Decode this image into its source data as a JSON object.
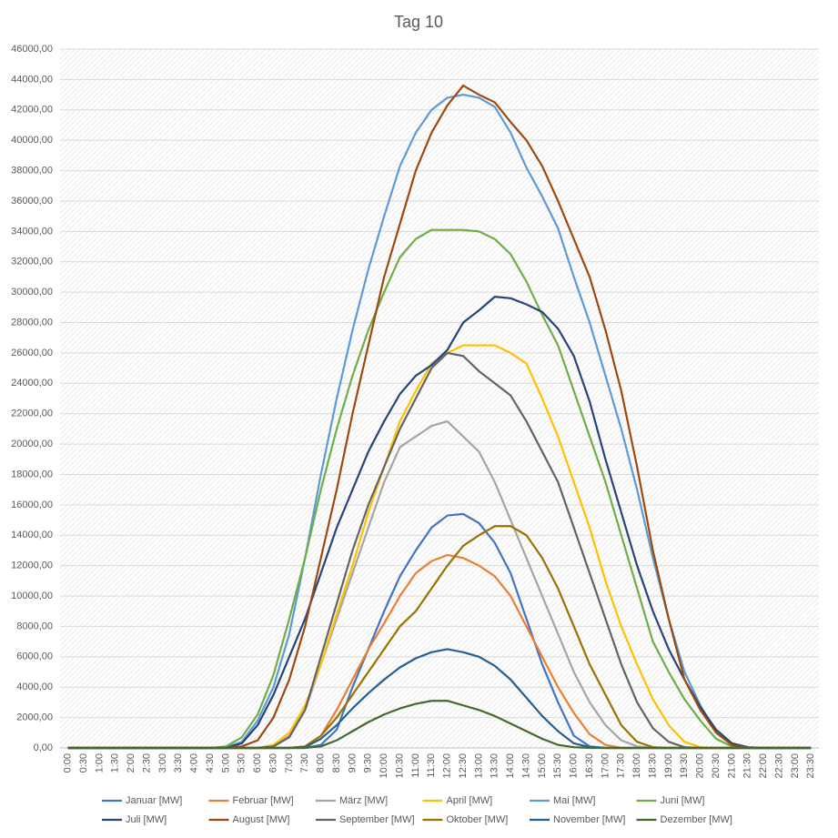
{
  "chart_data": {
    "type": "line",
    "title": "Tag 10",
    "categories": [
      "0:00",
      "0:30",
      "1:00",
      "1:30",
      "2:00",
      "2:30",
      "3:00",
      "3:30",
      "4:00",
      "4:30",
      "5:00",
      "5:30",
      "6:00",
      "6:30",
      "7:00",
      "7:30",
      "8:00",
      "8:30",
      "9:00",
      "9:30",
      "10:00",
      "10:30",
      "11:00",
      "11:30",
      "12:00",
      "12:30",
      "13:00",
      "13:30",
      "14:00",
      "14:30",
      "15:00",
      "15:30",
      "16:00",
      "16:30",
      "17:00",
      "17:30",
      "18:00",
      "18:30",
      "19:00",
      "19:30",
      "20:00",
      "20:30",
      "21:00",
      "21:30",
      "22:00",
      "22:30",
      "23:00",
      "23:30"
    ],
    "ylim": [
      0,
      46000
    ],
    "yticks": [
      {
        "value": 0,
        "label": "0,00"
      },
      {
        "value": 2000,
        "label": "2000,00"
      },
      {
        "value": 4000,
        "label": "4000,00"
      },
      {
        "value": 6000,
        "label": "6000,00"
      },
      {
        "value": 8000,
        "label": "8000,00"
      },
      {
        "value": 10000,
        "label": "10000,00"
      },
      {
        "value": 12000,
        "label": "12000,00"
      },
      {
        "value": 14000,
        "label": "14000,00"
      },
      {
        "value": 16000,
        "label": "16000,00"
      },
      {
        "value": 18000,
        "label": "18000,00"
      },
      {
        "value": 20000,
        "label": "20000,00"
      },
      {
        "value": 22000,
        "label": "22000,00"
      },
      {
        "value": 24000,
        "label": "24000,00"
      },
      {
        "value": 26000,
        "label": "26000,00"
      },
      {
        "value": 28000,
        "label": "28000,00"
      },
      {
        "value": 30000,
        "label": "30000,00"
      },
      {
        "value": 32000,
        "label": "32000,00"
      },
      {
        "value": 34000,
        "label": "34000,00"
      },
      {
        "value": 36000,
        "label": "36000,00"
      },
      {
        "value": 38000,
        "label": "38000,00"
      },
      {
        "value": 40000,
        "label": "40000,00"
      },
      {
        "value": 42000,
        "label": "42000,00"
      },
      {
        "value": 44000,
        "label": "44000,00"
      },
      {
        "value": 46000,
        "label": "46000,00"
      }
    ],
    "grid": true,
    "legend": "bottom",
    "series": [
      {
        "name": "Januar [MW]",
        "color": "#4472c4",
        "values": [
          0,
          0,
          0,
          0,
          0,
          0,
          0,
          0,
          0,
          0,
          0,
          0,
          0,
          0,
          0,
          0,
          200,
          1200,
          4000,
          6500,
          9000,
          11300,
          13000,
          14500,
          15300,
          15400,
          14800,
          13500,
          11500,
          8500,
          5500,
          3000,
          800,
          100,
          0,
          0,
          0,
          0,
          0,
          0,
          0,
          0,
          0,
          0,
          0,
          0,
          0,
          0
        ]
      },
      {
        "name": "Februar [MW]",
        "color": "#ed7d31",
        "values": [
          0,
          0,
          0,
          0,
          0,
          0,
          0,
          0,
          0,
          0,
          0,
          0,
          0,
          0,
          0,
          100,
          800,
          2500,
          4500,
          6500,
          8200,
          10000,
          11500,
          12300,
          12700,
          12500,
          12000,
          11300,
          10000,
          8000,
          6000,
          4000,
          2300,
          900,
          200,
          0,
          0,
          0,
          0,
          0,
          0,
          0,
          0,
          0,
          0,
          0,
          0,
          0
        ]
      },
      {
        "name": "März [MW]",
        "color": "#a5a5a5",
        "values": [
          0,
          0,
          0,
          0,
          0,
          0,
          0,
          0,
          0,
          0,
          0,
          0,
          0,
          100,
          800,
          2500,
          5500,
          8500,
          11500,
          14500,
          17500,
          19800,
          20500,
          21200,
          21500,
          20500,
          19500,
          17500,
          15000,
          12500,
          10000,
          7500,
          5000,
          3000,
          1500,
          500,
          100,
          0,
          0,
          0,
          0,
          0,
          0,
          0,
          0,
          0,
          0,
          0
        ]
      },
      {
        "name": "April [MW]",
        "color": "#ffc000",
        "values": [
          0,
          0,
          0,
          0,
          0,
          0,
          0,
          0,
          0,
          0,
          0,
          0,
          0,
          200,
          1000,
          2800,
          5500,
          8800,
          12000,
          15500,
          18500,
          21500,
          23500,
          25300,
          26000,
          26500,
          26500,
          26500,
          26000,
          25300,
          23000,
          20500,
          17500,
          14500,
          11000,
          8000,
          5500,
          3200,
          1500,
          400,
          50,
          0,
          0,
          0,
          0,
          0,
          0,
          0
        ]
      },
      {
        "name": "Mai [MW]",
        "color": "#5b9bd5",
        "values": [
          0,
          0,
          0,
          0,
          0,
          0,
          0,
          0,
          0,
          0,
          50,
          400,
          1800,
          4000,
          7500,
          12500,
          18000,
          23000,
          27500,
          31500,
          35000,
          38300,
          40500,
          42000,
          42800,
          43000,
          42800,
          42200,
          40500,
          38200,
          36300,
          34200,
          31000,
          28000,
          24500,
          21000,
          17000,
          12500,
          8500,
          5000,
          2800,
          1000,
          200,
          0,
          0,
          0,
          0,
          0
        ]
      },
      {
        "name": "Juni [MW]",
        "color": "#70ad47",
        "values": [
          0,
          0,
          0,
          0,
          0,
          0,
          0,
          0,
          0,
          0,
          100,
          700,
          2200,
          4800,
          8500,
          12500,
          17000,
          21000,
          24500,
          27500,
          30000,
          32300,
          33500,
          34100,
          34100,
          34100,
          34000,
          33500,
          32500,
          30700,
          28500,
          26500,
          23500,
          20500,
          17500,
          14000,
          10500,
          7000,
          5000,
          3200,
          1800,
          600,
          100,
          0,
          0,
          0,
          0,
          0
        ]
      },
      {
        "name": "Juli [MW]",
        "color": "#264478",
        "values": [
          0,
          0,
          0,
          0,
          0,
          0,
          0,
          0,
          0,
          0,
          0,
          300,
          1500,
          3500,
          6000,
          8500,
          11500,
          14500,
          17000,
          19500,
          21500,
          23300,
          24500,
          25200,
          26200,
          28000,
          28800,
          29700,
          29600,
          29200,
          28700,
          27600,
          25800,
          22800,
          19000,
          15500,
          12000,
          9000,
          6500,
          4500,
          2700,
          1200,
          300,
          50,
          0,
          0,
          0,
          0
        ]
      },
      {
        "name": "August [MW]",
        "color": "#9e480e",
        "values": [
          0,
          0,
          0,
          0,
          0,
          0,
          0,
          0,
          0,
          0,
          0,
          100,
          500,
          2000,
          4500,
          8000,
          12500,
          17000,
          22000,
          26500,
          31000,
          34500,
          38000,
          40500,
          42300,
          43600,
          43000,
          42500,
          41200,
          40000,
          38300,
          36000,
          33500,
          31000,
          27500,
          23500,
          18500,
          13000,
          8500,
          4500,
          2500,
          1000,
          200,
          0,
          0,
          0,
          0,
          0
        ]
      },
      {
        "name": "September [MW]",
        "color": "#636363",
        "values": [
          0,
          0,
          0,
          0,
          0,
          0,
          0,
          0,
          0,
          0,
          0,
          0,
          0,
          100,
          700,
          2500,
          6000,
          9500,
          13000,
          16000,
          18500,
          21000,
          23000,
          25000,
          26000,
          25800,
          24800,
          24000,
          23200,
          21500,
          19500,
          17500,
          14500,
          11500,
          8500,
          5500,
          3000,
          1300,
          400,
          50,
          0,
          0,
          0,
          0,
          0,
          0,
          0,
          0
        ]
      },
      {
        "name": "Oktober [MW]",
        "color": "#997300",
        "values": [
          0,
          0,
          0,
          0,
          0,
          0,
          0,
          0,
          0,
          0,
          0,
          0,
          0,
          0,
          0,
          100,
          800,
          2000,
          3500,
          5000,
          6500,
          8000,
          9000,
          10500,
          12000,
          13300,
          14000,
          14600,
          14600,
          14000,
          12500,
          10500,
          8000,
          5500,
          3500,
          1500,
          400,
          50,
          0,
          0,
          0,
          0,
          0,
          0,
          0,
          0,
          0,
          0
        ]
      },
      {
        "name": "November [MW]",
        "color": "#255e91",
        "values": [
          0,
          0,
          0,
          0,
          0,
          0,
          0,
          0,
          0,
          0,
          0,
          0,
          0,
          0,
          0,
          50,
          600,
          1500,
          2600,
          3600,
          4500,
          5300,
          5900,
          6300,
          6500,
          6300,
          6000,
          5400,
          4500,
          3300,
          2100,
          1100,
          300,
          50,
          0,
          0,
          0,
          0,
          0,
          0,
          0,
          0,
          0,
          0,
          0,
          0,
          0,
          0
        ]
      },
      {
        "name": "Dezember [MW]",
        "color": "#43682b",
        "values": [
          0,
          0,
          0,
          0,
          0,
          0,
          0,
          0,
          0,
          0,
          0,
          0,
          0,
          0,
          0,
          0,
          100,
          500,
          1100,
          1700,
          2200,
          2600,
          2900,
          3100,
          3100,
          2800,
          2500,
          2100,
          1600,
          1100,
          600,
          200,
          50,
          0,
          0,
          0,
          0,
          0,
          0,
          0,
          0,
          0,
          0,
          0,
          0,
          0,
          0,
          0
        ]
      }
    ]
  }
}
